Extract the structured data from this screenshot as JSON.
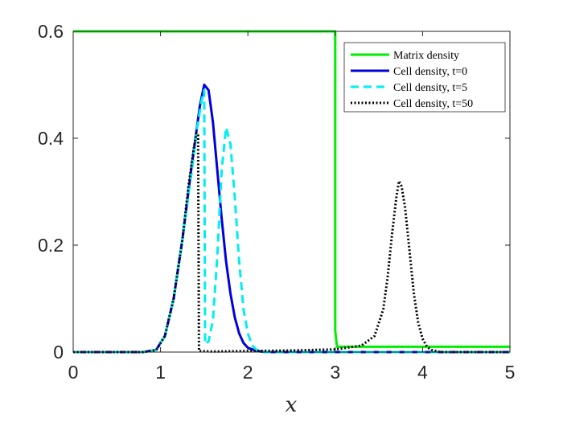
{
  "chart_data": {
    "type": "line",
    "xlabel": "x",
    "ylabel": "",
    "xlim": [
      0,
      5
    ],
    "ylim": [
      0,
      0.6
    ],
    "x_ticks": [
      0,
      1,
      2,
      3,
      4,
      5
    ],
    "x_tick_labels": [
      "0",
      "1",
      "2",
      "3",
      "4",
      "5"
    ],
    "y_ticks": [
      0,
      0.2,
      0.4,
      0.6
    ],
    "y_tick_labels": [
      "0",
      "0.2",
      "0.4",
      "0.6"
    ],
    "grid": false,
    "legend_position": "top-right",
    "series": [
      {
        "name": "Matrix density",
        "color": "#00ee00",
        "dash": "solid",
        "x": [
          0,
          3.0,
          3.0,
          3.02,
          5
        ],
        "y": [
          0.6,
          0.6,
          0.04,
          0.01,
          0.01
        ]
      },
      {
        "name": "Cell density, t=0",
        "color": "#0000dd",
        "dash": "solid",
        "x": [
          0,
          0.8,
          0.95,
          1.05,
          1.15,
          1.25,
          1.35,
          1.45,
          1.5,
          1.55,
          1.6,
          1.65,
          1.7,
          1.75,
          1.8,
          1.85,
          1.9,
          1.95,
          2.0,
          2.1,
          2.2,
          2.5,
          5
        ],
        "y": [
          0,
          0,
          0.004,
          0.03,
          0.1,
          0.21,
          0.34,
          0.46,
          0.5,
          0.49,
          0.43,
          0.34,
          0.25,
          0.17,
          0.11,
          0.065,
          0.035,
          0.017,
          0.008,
          0.002,
          0,
          0,
          0
        ]
      },
      {
        "name": "Cell density, t=5",
        "color": "#00eeee",
        "dash": "dashed",
        "x": [
          0,
          0.8,
          0.95,
          1.05,
          1.15,
          1.25,
          1.35,
          1.42,
          1.47,
          1.5,
          1.51,
          1.55,
          1.6,
          1.65,
          1.7,
          1.75,
          1.8,
          1.85,
          1.9,
          1.95,
          2.0,
          2.05,
          2.1,
          2.2,
          2.4,
          5
        ],
        "y": [
          0,
          0,
          0.004,
          0.03,
          0.1,
          0.21,
          0.33,
          0.42,
          0.47,
          0.49,
          0.015,
          0.02,
          0.06,
          0.18,
          0.34,
          0.42,
          0.39,
          0.29,
          0.17,
          0.08,
          0.035,
          0.012,
          0.004,
          0,
          0,
          0
        ]
      },
      {
        "name": "Cell density, t=50",
        "color": "#000000",
        "dash": "dotted",
        "x": [
          0,
          0.8,
          0.95,
          1.05,
          1.15,
          1.25,
          1.32,
          1.38,
          1.41,
          1.43,
          1.44,
          1.6,
          2.0,
          2.5,
          3.0,
          3.3,
          3.45,
          3.55,
          3.6,
          3.65,
          3.7,
          3.73,
          3.76,
          3.8,
          3.85,
          3.9,
          3.95,
          4.0,
          4.05,
          4.1,
          4.2,
          4.4,
          5
        ],
        "y": [
          0,
          0,
          0.004,
          0.03,
          0.1,
          0.21,
          0.31,
          0.38,
          0.41,
          0.405,
          0.002,
          0.001,
          0.002,
          0.003,
          0.005,
          0.012,
          0.03,
          0.08,
          0.14,
          0.22,
          0.29,
          0.32,
          0.31,
          0.27,
          0.19,
          0.11,
          0.055,
          0.025,
          0.01,
          0.004,
          0,
          0,
          0
        ]
      }
    ]
  }
}
